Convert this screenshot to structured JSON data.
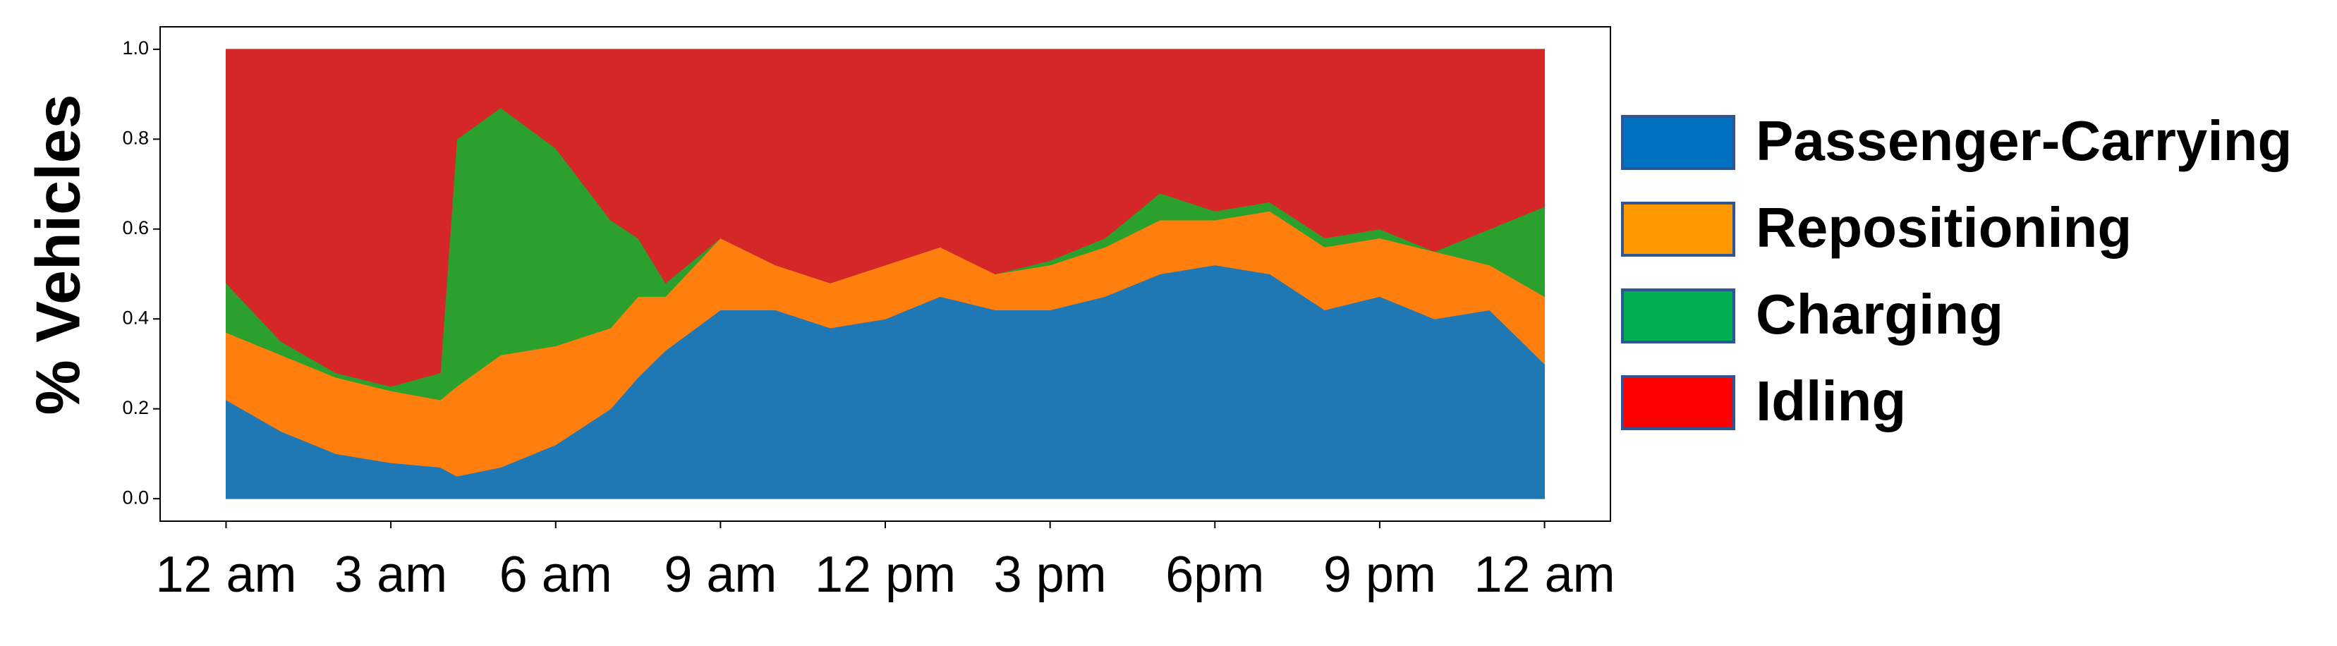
{
  "chart_data": {
    "type": "stacked_area",
    "ylabel": "% Vehicles",
    "x": [
      0,
      1,
      2,
      3,
      3.9,
      4.2,
      5,
      6,
      7,
      7.5,
      8,
      9,
      10,
      11,
      12,
      13,
      14,
      15,
      16,
      17,
      18,
      19,
      20,
      21,
      22,
      23,
      24
    ],
    "xlim": [
      -1.2,
      25.2
    ],
    "xticks": [
      {
        "value": 0,
        "label": "12 am"
      },
      {
        "value": 3,
        "label": "3 am"
      },
      {
        "value": 6,
        "label": "6 am"
      },
      {
        "value": 9,
        "label": "9 am"
      },
      {
        "value": 12,
        "label": "12 pm"
      },
      {
        "value": 15,
        "label": "3 pm"
      },
      {
        "value": 18,
        "label": "6pm"
      },
      {
        "value": 21,
        "label": "9 pm"
      },
      {
        "value": 24,
        "label": "12 am"
      }
    ],
    "ylim": [
      -0.05,
      1.05
    ],
    "yticks": [
      {
        "value": 0,
        "label": "0.0"
      },
      {
        "value": 0.2,
        "label": "0.2"
      },
      {
        "value": 0.4,
        "label": "0.4"
      },
      {
        "value": 0.6,
        "label": "0.6"
      },
      {
        "value": 0.8,
        "label": "0.8"
      },
      {
        "value": 1,
        "label": "1.0"
      }
    ],
    "legend": "right",
    "series": [
      {
        "name": "Passenger-Carrying",
        "color": "#1f77b4",
        "legend_color": "#0070c0",
        "values": [
          0.22,
          0.15,
          0.1,
          0.08,
          0.07,
          0.05,
          0.07,
          0.12,
          0.2,
          0.27,
          0.33,
          0.42,
          0.42,
          0.38,
          0.4,
          0.45,
          0.42,
          0.42,
          0.45,
          0.5,
          0.52,
          0.5,
          0.42,
          0.45,
          0.4,
          0.42,
          0.3
        ]
      },
      {
        "name": "Repositioning",
        "color": "#ff7f0e",
        "legend_color": "#ff9900",
        "values": [
          0.15,
          0.17,
          0.17,
          0.16,
          0.15,
          0.2,
          0.25,
          0.22,
          0.18,
          0.18,
          0.12,
          0.16,
          0.1,
          0.1,
          0.12,
          0.11,
          0.08,
          0.1,
          0.11,
          0.12,
          0.1,
          0.14,
          0.14,
          0.13,
          0.15,
          0.1,
          0.15
        ]
      },
      {
        "name": "Charging",
        "color": "#2ca02c",
        "legend_color": "#00b050",
        "values": [
          0.11,
          0.03,
          0.01,
          0.01,
          0.06,
          0.55,
          0.55,
          0.44,
          0.24,
          0.13,
          0.03,
          0,
          0,
          0,
          0,
          0,
          0,
          0.01,
          0.02,
          0.06,
          0.02,
          0.02,
          0.02,
          0.02,
          0,
          0.08,
          0.2
        ]
      },
      {
        "name": "Idling",
        "color": "#d62728",
        "legend_color": "#ff0000",
        "values": [
          0.52,
          0.65,
          0.72,
          0.75,
          0.72,
          0.2,
          0.13,
          0.22,
          0.38,
          0.42,
          0.52,
          0.42,
          0.48,
          0.52,
          0.48,
          0.44,
          0.5,
          0.47,
          0.42,
          0.32,
          0.36,
          0.34,
          0.42,
          0.4,
          0.45,
          0.4,
          0.35
        ]
      }
    ]
  }
}
